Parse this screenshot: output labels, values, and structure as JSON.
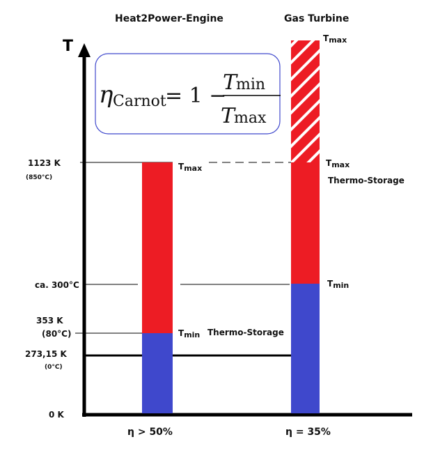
{
  "headers": {
    "left": "Heat2Power-Engine",
    "right": "Gas Turbine"
  },
  "axis": {
    "label": "T"
  },
  "formula": {
    "eta": "η",
    "eta_sub": "Carnot",
    "eq": "= 1 −",
    "num": "T",
    "num_sub": "min",
    "den": "T",
    "den_sub": "max"
  },
  "y_labels": {
    "k1123": "1123 K",
    "c850": "(850°C)",
    "c300": "ca. 300°C",
    "k353": "353 K",
    "c80": "(80°C)",
    "k273": "273,15 K",
    "c0": "(0°C)",
    "k0": "0 K"
  },
  "bar_labels": {
    "T": "T",
    "max": "max",
    "min": "min",
    "storage": "Thermo-Storage"
  },
  "efficiency": {
    "left": "η > 50%",
    "right": "η = 35%"
  },
  "colors": {
    "hot": "#ed1c24",
    "cold": "#3f48cc",
    "box_border": "#3f48cc"
  }
}
